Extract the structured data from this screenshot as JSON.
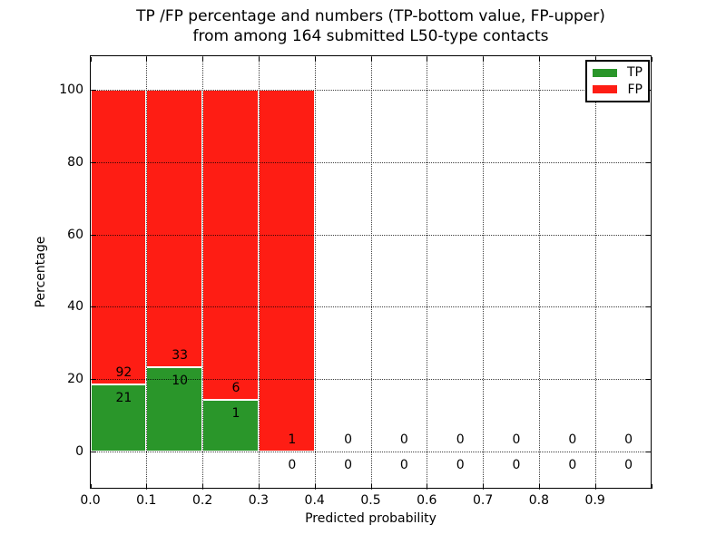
{
  "figure": {
    "background": "#ffffff",
    "title_line1": "TP /FP percentage and numbers (TP-bottom value, FP-upper)",
    "title_line2": "from among 164 submitted L50-type contacts"
  },
  "chart_data": {
    "type": "bar",
    "variant": "stacked-percentage-histogram",
    "title": "TP /FP percentage and numbers (TP-bottom value, FP-upper) from among 164 submitted L50-type contacts",
    "xlabel": "Predicted probability",
    "ylabel": "Percentage",
    "total_contacts": 164,
    "xlim": [
      0.0,
      1.0
    ],
    "ylim": [
      -10,
      110
    ],
    "grid": "dotted, both axes, drawn over bars",
    "x_tick_labels": [
      "0.0",
      "0.1",
      "0.2",
      "0.3",
      "0.4",
      "0.5",
      "0.6",
      "0.7",
      "0.8",
      "0.9"
    ],
    "y_tick_values": [
      0,
      20,
      40,
      60,
      80,
      100
    ],
    "y_tick_labels": [
      "0",
      "20",
      "40",
      "60",
      "80",
      "100"
    ],
    "legend": {
      "position": "upper right",
      "entries": [
        {
          "label": "TP",
          "color": "#2a962a"
        },
        {
          "label": "FP",
          "color": "#fe1d14"
        }
      ]
    },
    "bins": [
      {
        "x0": 0.0,
        "x1": 0.1,
        "tp": 21,
        "fp": 92
      },
      {
        "x0": 0.1,
        "x1": 0.2,
        "tp": 10,
        "fp": 33
      },
      {
        "x0": 0.2,
        "x1": 0.3,
        "tp": 1,
        "fp": 6
      },
      {
        "x0": 0.3,
        "x1": 0.4,
        "tp": 0,
        "fp": 1
      },
      {
        "x0": 0.4,
        "x1": 0.5,
        "tp": 0,
        "fp": 0
      },
      {
        "x0": 0.5,
        "x1": 0.6,
        "tp": 0,
        "fp": 0
      },
      {
        "x0": 0.6,
        "x1": 0.7,
        "tp": 0,
        "fp": 0
      },
      {
        "x0": 0.7,
        "x1": 0.8,
        "tp": 0,
        "fp": 0
      },
      {
        "x0": 0.8,
        "x1": 0.9,
        "tp": 0,
        "fp": 0
      },
      {
        "x0": 0.9,
        "x1": 1.0,
        "tp": 0,
        "fp": 0
      }
    ],
    "bar_label_rule": "FP count printed just above the TP/FP boundary, TP count just below it"
  },
  "colors": {
    "tp_bar": "#2a962a",
    "fp_bar": "#fe1d14",
    "bar_edge": "#ffffff",
    "text": "#000000",
    "grid": "#000000",
    "background": "#ffffff"
  }
}
